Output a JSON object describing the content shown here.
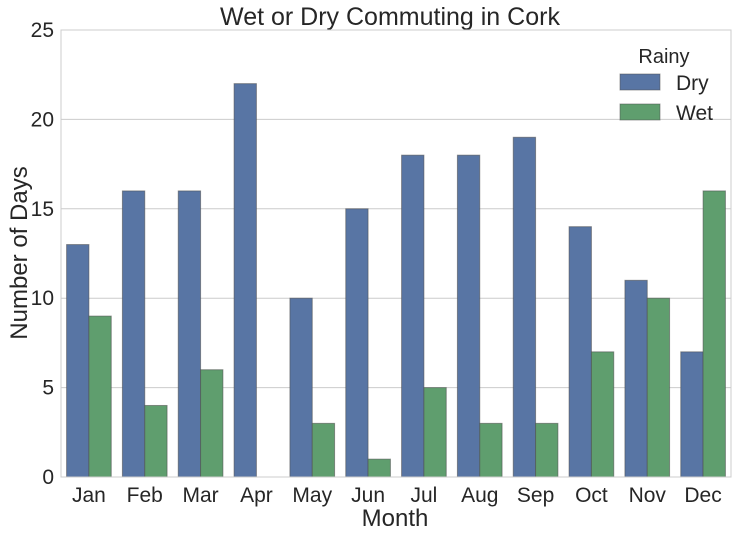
{
  "chart_data": {
    "type": "bar",
    "title": "Wet or Dry Commuting in Cork",
    "xlabel": "Month",
    "ylabel": "Number of Days",
    "categories": [
      "Jan",
      "Feb",
      "Mar",
      "Apr",
      "May",
      "Jun",
      "Jul",
      "Aug",
      "Sep",
      "Oct",
      "Nov",
      "Dec"
    ],
    "series": [
      {
        "name": "Dry",
        "color": "#5875a4",
        "values": [
          13,
          16,
          16,
          22,
          10,
          15,
          18,
          18,
          19,
          14,
          11,
          7
        ]
      },
      {
        "name": "Wet",
        "color": "#5f9e6e",
        "values": [
          9,
          4,
          6,
          0,
          3,
          1,
          5,
          3,
          3,
          7,
          10,
          16
        ]
      }
    ],
    "ylim": [
      0,
      25
    ],
    "yticks": [
      0,
      5,
      10,
      15,
      20,
      25
    ],
    "grid": "horizontal",
    "legend": {
      "title": "Rainy",
      "placement": "top-right"
    }
  }
}
